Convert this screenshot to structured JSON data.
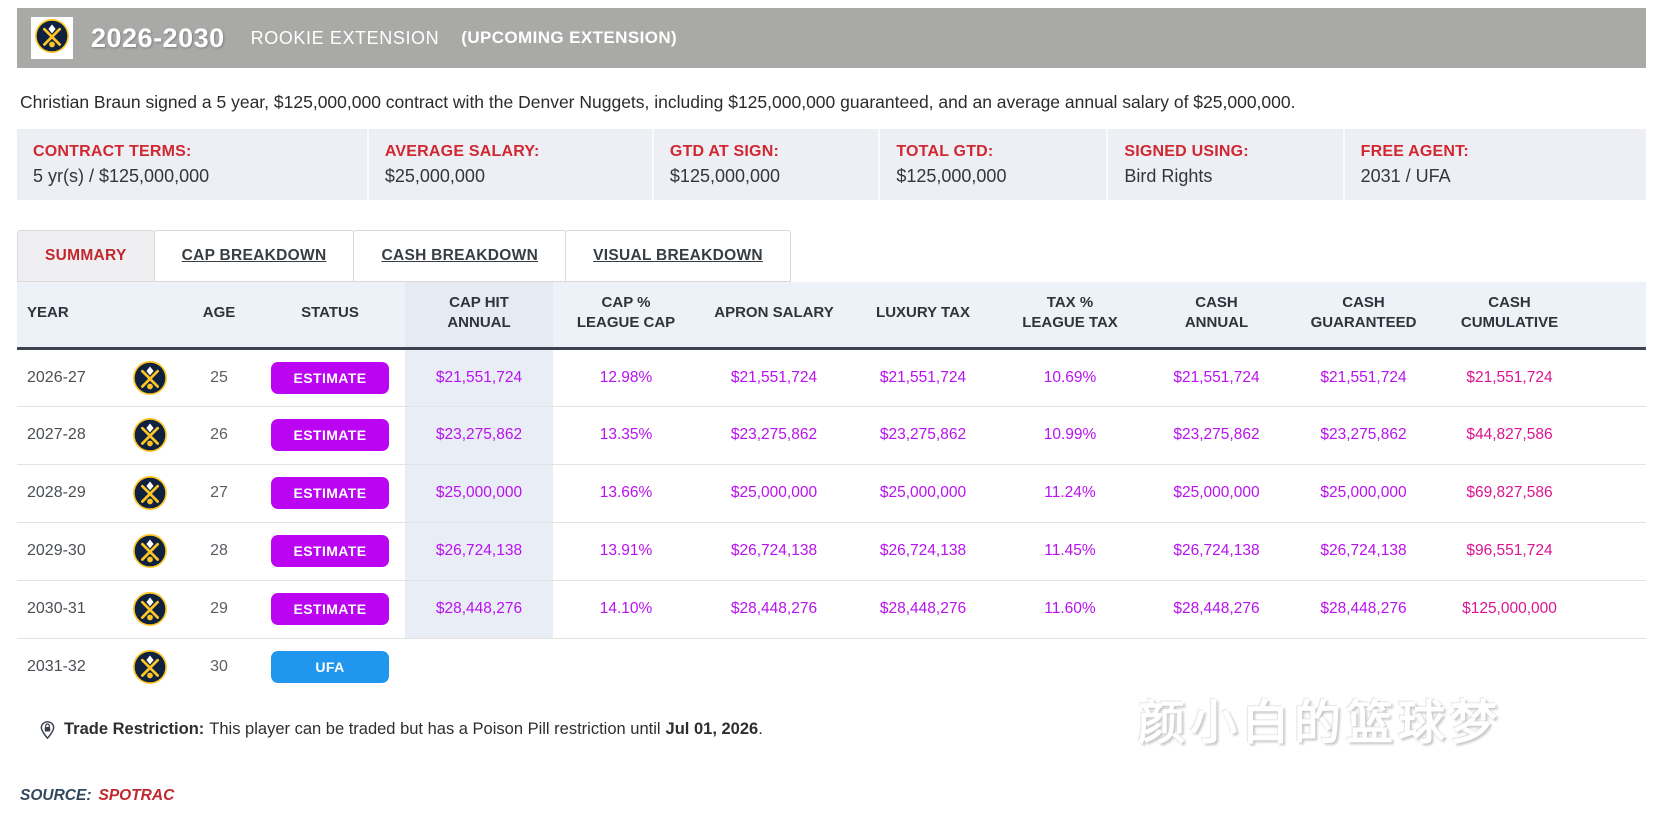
{
  "header": {
    "years": "2026-2030",
    "contract_type": "ROOKIE EXTENSION",
    "note": "(UPCOMING EXTENSION)",
    "team": "Denver Nuggets"
  },
  "summary_sentence": "Christian Braun signed a 5 year, $125,000,000 contract with the Denver Nuggets, including $125,000,000 guaranteed, and an average annual salary of $25,000,000.",
  "terms": [
    {
      "label": "CONTRACT TERMS:",
      "value": "5 yr(s) / $125,000,000"
    },
    {
      "label": "AVERAGE SALARY:",
      "value": "$25,000,000"
    },
    {
      "label": "GTD AT SIGN:",
      "value": "$125,000,000"
    },
    {
      "label": "TOTAL GTD:",
      "value": "$125,000,000"
    },
    {
      "label": "SIGNED USING:",
      "value": "Bird Rights"
    },
    {
      "label": "FREE AGENT:",
      "value": "2031 / UFA"
    }
  ],
  "tabs": [
    {
      "label": "SUMMARY",
      "active": true
    },
    {
      "label": "CAP BREAKDOWN",
      "active": false
    },
    {
      "label": "CASH BREAKDOWN",
      "active": false
    },
    {
      "label": "VISUAL BREAKDOWN",
      "active": false
    }
  ],
  "table": {
    "headers": [
      {
        "lines": [
          "YEAR"
        ]
      },
      {
        "lines": [
          ""
        ]
      },
      {
        "lines": [
          "AGE"
        ]
      },
      {
        "lines": [
          "STATUS"
        ]
      },
      {
        "lines": [
          "CAP HIT",
          "ANNUAL"
        ]
      },
      {
        "lines": [
          "CAP %",
          "LEAGUE CAP"
        ]
      },
      {
        "lines": [
          "APRON SALARY"
        ]
      },
      {
        "lines": [
          "LUXURY TAX"
        ]
      },
      {
        "lines": [
          "TAX %",
          "LEAGUE TAX"
        ]
      },
      {
        "lines": [
          "CASH",
          "ANNUAL"
        ]
      },
      {
        "lines": [
          "CASH",
          "GUARANTEED"
        ]
      },
      {
        "lines": [
          "CASH",
          "CUMULATIVE"
        ]
      }
    ],
    "rows": [
      {
        "year": "2026-27",
        "age": "25",
        "status": "ESTIMATE",
        "cap_hit": "$21,551,724",
        "cap_pct": "12.98%",
        "apron_salary": "$21,551,724",
        "luxury_tax": "$21,551,724",
        "tax_pct": "10.69%",
        "cash_annual": "$21,551,724",
        "cash_guaranteed": "$21,551,724",
        "cash_cumulative": "$21,551,724"
      },
      {
        "year": "2027-28",
        "age": "26",
        "status": "ESTIMATE",
        "cap_hit": "$23,275,862",
        "cap_pct": "13.35%",
        "apron_salary": "$23,275,862",
        "luxury_tax": "$23,275,862",
        "tax_pct": "10.99%",
        "cash_annual": "$23,275,862",
        "cash_guaranteed": "$23,275,862",
        "cash_cumulative": "$44,827,586"
      },
      {
        "year": "2028-29",
        "age": "27",
        "status": "ESTIMATE",
        "cap_hit": "$25,000,000",
        "cap_pct": "13.66%",
        "apron_salary": "$25,000,000",
        "luxury_tax": "$25,000,000",
        "tax_pct": "11.24%",
        "cash_annual": "$25,000,000",
        "cash_guaranteed": "$25,000,000",
        "cash_cumulative": "$69,827,586"
      },
      {
        "year": "2029-30",
        "age": "28",
        "status": "ESTIMATE",
        "cap_hit": "$26,724,138",
        "cap_pct": "13.91%",
        "apron_salary": "$26,724,138",
        "luxury_tax": "$26,724,138",
        "tax_pct": "11.45%",
        "cash_annual": "$26,724,138",
        "cash_guaranteed": "$26,724,138",
        "cash_cumulative": "$96,551,724"
      },
      {
        "year": "2030-31",
        "age": "29",
        "status": "ESTIMATE",
        "cap_hit": "$28,448,276",
        "cap_pct": "14.10%",
        "apron_salary": "$28,448,276",
        "luxury_tax": "$28,448,276",
        "tax_pct": "11.60%",
        "cash_annual": "$28,448,276",
        "cash_guaranteed": "$28,448,276",
        "cash_cumulative": "$125,000,000"
      },
      {
        "year": "2031-32",
        "age": "30",
        "status": "UFA",
        "cap_hit": "",
        "cap_pct": "",
        "apron_salary": "",
        "luxury_tax": "",
        "tax_pct": "",
        "cash_annual": "",
        "cash_guaranteed": "",
        "cash_cumulative": ""
      }
    ]
  },
  "trade_note": {
    "label": "Trade Restriction:",
    "body": "This player can be traded but has a Poison Pill restriction until",
    "date": "Jul 01, 2026",
    "period": "."
  },
  "source": {
    "label": "SOURCE:",
    "value": "SPOTRAC"
  },
  "watermark": "颜小白的篮球梦",
  "icons": {
    "team_logo": "denver-nuggets-logo",
    "trade_icon": "trade-restriction-lock-icon"
  },
  "colors": {
    "header_bar": "#a9a9a7",
    "terms_background": "#edeff5",
    "label_red": "#d02730",
    "tab_active_red": "#c2272d",
    "estimate_badge": "#bb04f2",
    "ufa_badge": "#2196ee",
    "value_magenta": "#b911ef",
    "cumulative_pink": "#dc1492",
    "header_row_bg": "#edf1f8",
    "caphit_col_bg": "#e9edf6",
    "nuggets_navy": "#0e2240",
    "nuggets_gold": "#fec524"
  }
}
